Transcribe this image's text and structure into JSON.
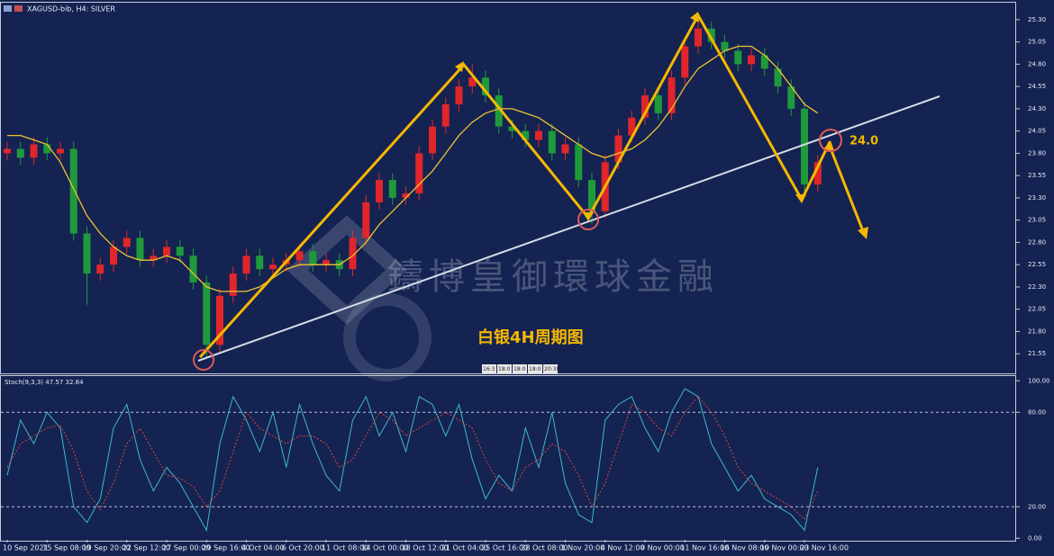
{
  "chart_data": [
    {
      "type": "candlestick",
      "title": "XAGUSD-bib, H4: SILVER",
      "categories": [
        "10 Sep 2021",
        null,
        null,
        "15 Sep 08:00",
        null,
        null,
        "19 Sep 20:00",
        null,
        null,
        "22 Sep 12:00",
        null,
        null,
        "27 Sep 00:00",
        null,
        null,
        "29 Sep 16:00",
        null,
        null,
        "4 Oct 04:00",
        null,
        null,
        "6 Oct 20:00",
        null,
        null,
        "11 Oct 08:00",
        null,
        null,
        "14 Oct 00:00",
        null,
        null,
        "18 Oct 12:00",
        null,
        null,
        "21 Oct 04:00",
        null,
        null,
        "25 Oct 16:00",
        null,
        null,
        "28 Oct 08:00",
        null,
        null,
        "1 Nov 20:00",
        null,
        null,
        "4 Nov 12:00",
        null,
        null,
        "9 Nov 00:00",
        null,
        null,
        "11 Nov 16:00",
        null,
        null,
        "16 Nov 08:00",
        null,
        null,
        "19 Nov 00:00",
        null,
        null,
        "23 Nov 16:00",
        null
      ],
      "open": [
        23.8,
        23.85,
        23.75,
        23.9,
        23.8,
        23.85,
        22.9,
        22.45,
        22.55,
        22.75,
        22.85,
        22.6,
        22.65,
        22.75,
        22.65,
        22.35,
        21.65,
        22.2,
        22.45,
        22.65,
        22.5,
        22.55,
        22.6,
        22.7,
        22.55,
        22.6,
        22.5,
        22.85,
        23.25,
        23.5,
        23.3,
        23.35,
        23.8,
        24.1,
        24.35,
        24.55,
        24.65,
        24.45,
        24.1,
        24.05,
        23.95,
        24.05,
        23.8,
        23.9,
        23.5,
        23.15,
        23.7,
        24.0,
        24.2,
        24.45,
        24.25,
        24.65,
        25.0,
        25.2,
        25.05,
        24.95,
        24.8,
        24.9,
        24.75,
        24.55,
        24.3,
        23.45
      ],
      "high": [
        23.93,
        23.93,
        23.98,
        23.98,
        23.93,
        23.93,
        22.98,
        22.63,
        22.83,
        22.93,
        22.93,
        22.73,
        22.83,
        22.83,
        22.73,
        22.43,
        22.28,
        22.53,
        22.73,
        22.73,
        22.63,
        22.68,
        22.78,
        22.78,
        22.68,
        22.68,
        22.93,
        23.33,
        23.58,
        23.58,
        23.43,
        23.88,
        24.18,
        24.43,
        24.63,
        24.8,
        24.73,
        24.53,
        24.18,
        24.13,
        24.13,
        24.13,
        23.98,
        23.98,
        23.58,
        23.78,
        24.08,
        24.28,
        24.53,
        24.53,
        24.73,
        25.08,
        25.35,
        25.28,
        25.13,
        25.03,
        24.98,
        24.98,
        24.83,
        24.63,
        24.38,
        23.78
      ],
      "low": [
        23.72,
        23.67,
        23.67,
        23.72,
        23.72,
        22.82,
        22.1,
        22.37,
        22.47,
        22.67,
        22.52,
        22.52,
        22.57,
        22.57,
        22.27,
        21.5,
        21.57,
        22.12,
        22.37,
        22.42,
        22.42,
        22.47,
        22.52,
        22.47,
        22.47,
        22.42,
        22.42,
        22.77,
        23.17,
        23.22,
        23.22,
        23.27,
        23.72,
        24.02,
        24.27,
        24.47,
        24.37,
        24.02,
        23.97,
        23.87,
        23.87,
        23.72,
        23.72,
        23.42,
        23.0,
        23.07,
        23.62,
        23.92,
        24.12,
        24.17,
        24.17,
        24.57,
        24.92,
        24.97,
        24.87,
        24.72,
        24.72,
        24.67,
        24.47,
        24.22,
        23.3,
        23.37
      ],
      "close": [
        23.85,
        23.75,
        23.9,
        23.8,
        23.85,
        22.9,
        22.45,
        22.55,
        22.75,
        22.85,
        22.6,
        22.65,
        22.75,
        22.65,
        22.35,
        21.65,
        22.2,
        22.45,
        22.65,
        22.5,
        22.55,
        22.6,
        22.7,
        22.55,
        22.6,
        22.5,
        22.85,
        23.25,
        23.5,
        23.3,
        23.35,
        23.8,
        24.1,
        24.35,
        24.55,
        24.65,
        24.45,
        24.1,
        24.05,
        23.95,
        24.05,
        23.8,
        23.9,
        23.5,
        23.15,
        23.7,
        24.0,
        24.2,
        24.45,
        24.25,
        24.65,
        25.0,
        25.2,
        25.05,
        24.95,
        24.8,
        24.9,
        24.75,
        24.55,
        24.3,
        23.45,
        23.7
      ],
      "up_color": "#e0262b",
      "down_color": "#1f9a3b",
      "series": [
        {
          "values": [
            24.0,
            24.0,
            23.95,
            23.9,
            23.7,
            23.4,
            23.1,
            22.9,
            22.75,
            22.65,
            22.6,
            22.6,
            22.65,
            22.6,
            22.45,
            22.3,
            22.25,
            22.25,
            22.25,
            22.3,
            22.4,
            22.5,
            22.55,
            22.55,
            22.55,
            22.55,
            22.65,
            22.8,
            23.0,
            23.15,
            23.3,
            23.45,
            23.6,
            23.8,
            24.0,
            24.15,
            24.25,
            24.3,
            24.3,
            24.25,
            24.2,
            24.1,
            24.0,
            23.9,
            23.8,
            23.75,
            23.8,
            23.85,
            23.95,
            24.1,
            24.3,
            24.55,
            24.75,
            24.85,
            24.95,
            25.0,
            25.0,
            24.9,
            24.75,
            24.55,
            24.35,
            24.25
          ],
          "color": "#f2c230"
        }
      ],
      "ylim": [
        21.33,
        25.48
      ],
      "yticks": [
        21.55,
        {
          "value": 21.8,
          "label": "21.80"
        },
        22.05,
        {
          "value": 22.3,
          "label": "22.30"
        },
        22.55,
        {
          "value": 22.8,
          "label": "22.80"
        },
        23.05,
        {
          "value": 23.3,
          "label": "23.30"
        },
        23.55,
        {
          "value": 23.8,
          "label": "23.80"
        },
        24.05,
        {
          "value": 24.3,
          "label": "24.30"
        },
        24.55,
        {
          "value": 24.8,
          "label": "24.80"
        },
        25.05,
        {
          "value": 25.3,
          "label": "25.30"
        }
      ],
      "grid": false,
      "annotations": [
        "24.0",
        "白银4H周期图"
      ],
      "watermark": "鑄博皇御環球金融",
      "time_markers": [
        "16:3",
        "18:0",
        "18:0",
        "18:0",
        "20:30"
      ]
    },
    {
      "type": "line",
      "title": "Stoch(9,3,3) 47.57 32.84",
      "series": [
        {
          "color": "#3fb8c8",
          "values": [
            40,
            75,
            60,
            80,
            70,
            20,
            10,
            25,
            70,
            85,
            50,
            30,
            45,
            35,
            20,
            5,
            60,
            90,
            75,
            55,
            80,
            45,
            85,
            60,
            40,
            30,
            75,
            90,
            65,
            80,
            55,
            90,
            85,
            65,
            85,
            50,
            25,
            40,
            30,
            70,
            45,
            80,
            35,
            15,
            10,
            75,
            85,
            90,
            70,
            55,
            80,
            95,
            90,
            60,
            45,
            30,
            40,
            25,
            20,
            15,
            5,
            45
          ]
        },
        {
          "color": "#e04040",
          "dashed": true,
          "values": [
            45,
            60,
            65,
            70,
            72,
            55,
            30,
            18,
            35,
            60,
            70,
            55,
            40,
            38,
            33,
            20,
            30,
            55,
            80,
            70,
            65,
            60,
            65,
            65,
            60,
            45,
            50,
            65,
            80,
            75,
            65,
            70,
            75,
            80,
            75,
            70,
            50,
            35,
            30,
            45,
            50,
            60,
            55,
            40,
            20,
            35,
            60,
            85,
            80,
            70,
            65,
            80,
            90,
            80,
            65,
            45,
            35,
            30,
            25,
            20,
            12,
            30
          ]
        }
      ],
      "ylim": [
        -1,
        103
      ],
      "yticks": [
        {
          "value": 0,
          "label": "0.00"
        },
        {
          "value": 20,
          "label": "20.00"
        },
        {
          "value": 80,
          "label": "80.00"
        },
        {
          "value": 100,
          "label": "100.00"
        }
      ],
      "level_lines": [
        20,
        80
      ]
    }
  ]
}
